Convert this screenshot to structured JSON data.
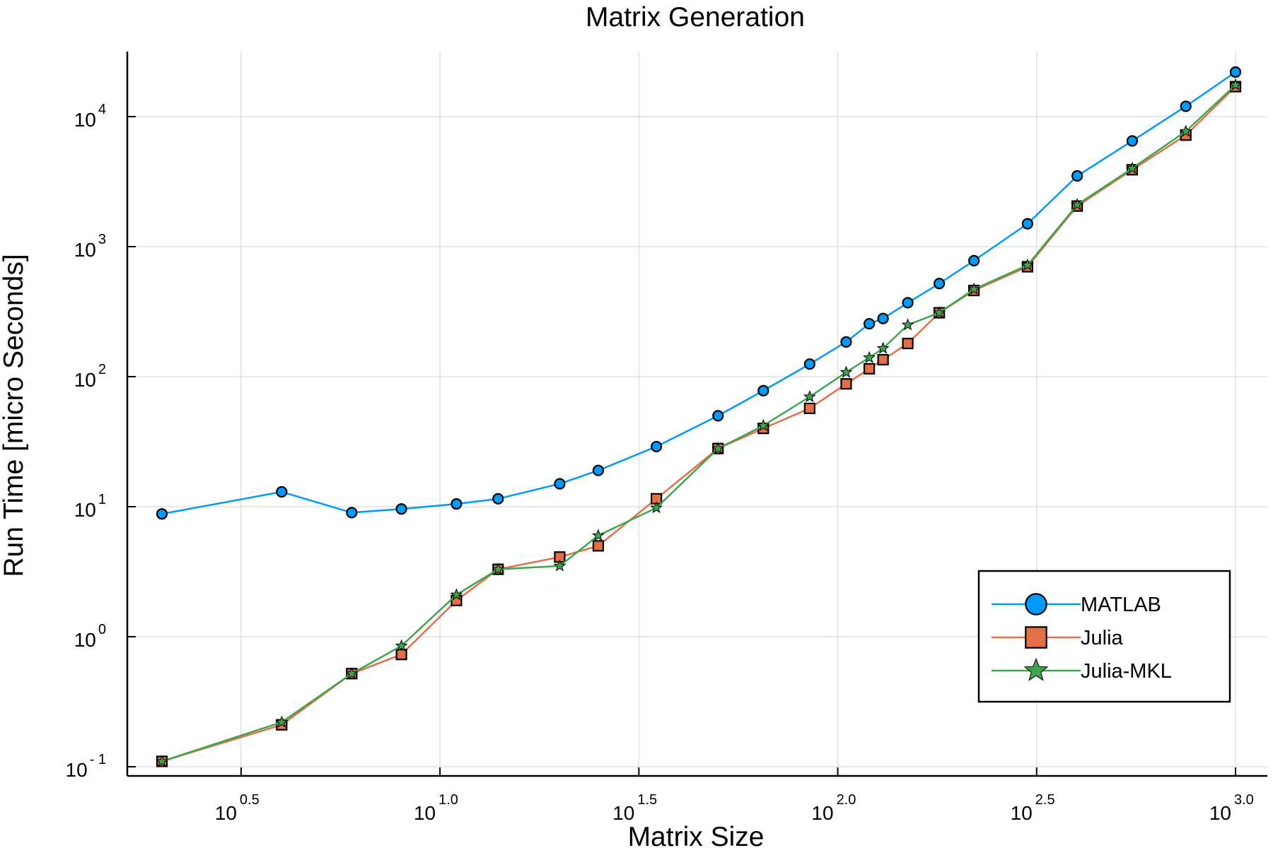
{
  "chart_data": {
    "type": "line",
    "title": "Matrix Generation",
    "xlabel": "Matrix Size",
    "ylabel": "Run Time  [micro Seconds]",
    "xscale": "log10",
    "yscale": "log10",
    "xlim": [
      2,
      1000
    ],
    "ylim": [
      0.1,
      31623
    ],
    "grid": true,
    "legend_position": "bottom-right",
    "x_ticks": [
      {
        "base": "10",
        "exp": "0.5",
        "value": 3.1623
      },
      {
        "base": "10",
        "exp": "1.0",
        "value": 10
      },
      {
        "base": "10",
        "exp": "1.5",
        "value": 31.623
      },
      {
        "base": "10",
        "exp": "2.0",
        "value": 100
      },
      {
        "base": "10",
        "exp": "2.5",
        "value": 316.23
      },
      {
        "base": "10",
        "exp": "3.0",
        "value": 1000
      }
    ],
    "y_ticks": [
      {
        "base": "10",
        "exp": "- 1",
        "value": 0.1
      },
      {
        "base": "10",
        "exp": "0",
        "value": 1
      },
      {
        "base": "10",
        "exp": "1",
        "value": 10
      },
      {
        "base": "10",
        "exp": "2",
        "value": 100
      },
      {
        "base": "10",
        "exp": "3",
        "value": 1000
      },
      {
        "base": "10",
        "exp": "4",
        "value": 10000
      }
    ],
    "x": [
      2,
      4,
      6,
      8,
      11,
      14,
      20,
      25,
      35,
      50,
      65,
      85,
      105,
      120,
      130,
      150,
      180,
      220,
      300,
      400,
      550,
      750,
      1000
    ],
    "series": [
      {
        "name": "MATLAB",
        "color": "#009AFA",
        "marker": "circle",
        "values": [
          8.8,
          13,
          9.0,
          9.6,
          10.5,
          11.5,
          15,
          19,
          29,
          50,
          78,
          125,
          185,
          255,
          280,
          370,
          520,
          780,
          1500,
          3500,
          6500,
          12000,
          22000
        ]
      },
      {
        "name": "Julia",
        "color": "#E26F46",
        "marker": "square",
        "values": [
          0.11,
          0.21,
          0.52,
          0.73,
          1.9,
          3.3,
          4.1,
          5.0,
          11.5,
          28,
          40,
          57,
          88,
          115,
          135,
          180,
          310,
          460,
          700,
          2050,
          3900,
          7200,
          17000
        ]
      },
      {
        "name": "Julia-MKL",
        "color": "#3EA44E",
        "marker": "star",
        "values": [
          0.11,
          0.22,
          0.52,
          0.85,
          2.1,
          3.3,
          3.5,
          6.0,
          9.8,
          28,
          42,
          70,
          108,
          140,
          165,
          250,
          310,
          470,
          720,
          2100,
          4000,
          7700,
          17500
        ]
      }
    ]
  }
}
